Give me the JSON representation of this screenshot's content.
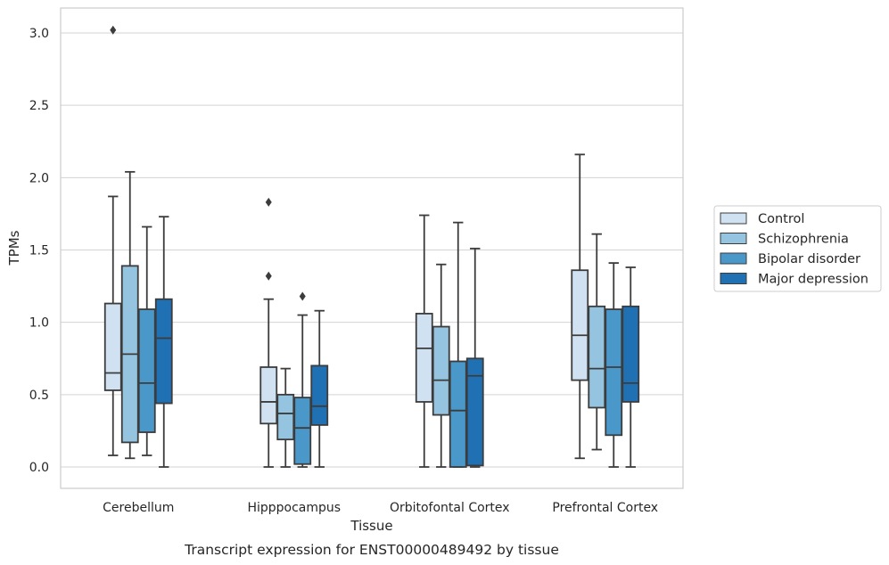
{
  "chart_data": {
    "type": "box",
    "title": "",
    "caption": "Transcript expression for ENST00000489492 by tissue",
    "xlabel": "Tissue",
    "ylabel": "TPMs",
    "ylim": [
      -0.15,
      3.18
    ],
    "yticks": [
      "0.0",
      "0.5",
      "1.0",
      "1.5",
      "2.0",
      "2.5",
      "3.0"
    ],
    "grid": true,
    "legend_position": "right",
    "categories": [
      "Cerebellum",
      "Hipppocampus",
      "Orbitofontal Cortex",
      "Prefrontal Cortex"
    ],
    "series": [
      {
        "name": "Control",
        "color": "#d0e1f2",
        "boxes": [
          {
            "whislo": 0.08,
            "q1": 0.53,
            "med": 0.65,
            "q3": 1.13,
            "whishi": 1.87,
            "fliers": [
              3.02
            ]
          },
          {
            "whislo": 0.0,
            "q1": 0.3,
            "med": 0.45,
            "q3": 0.69,
            "whishi": 1.16,
            "fliers": [
              1.32,
              1.83
            ]
          },
          {
            "whislo": 0.0,
            "q1": 0.45,
            "med": 0.82,
            "q3": 1.06,
            "whishi": 1.74,
            "fliers": []
          },
          {
            "whislo": 0.06,
            "q1": 0.6,
            "med": 0.91,
            "q3": 1.36,
            "whishi": 2.16,
            "fliers": []
          }
        ]
      },
      {
        "name": "Schizophrenia",
        "color": "#94c4df",
        "boxes": [
          {
            "whislo": 0.06,
            "q1": 0.17,
            "med": 0.78,
            "q3": 1.39,
            "whishi": 2.04,
            "fliers": []
          },
          {
            "whislo": 0.0,
            "q1": 0.19,
            "med": 0.37,
            "q3": 0.5,
            "whishi": 0.68,
            "fliers": []
          },
          {
            "whislo": 0.0,
            "q1": 0.36,
            "med": 0.6,
            "q3": 0.97,
            "whishi": 1.4,
            "fliers": []
          },
          {
            "whislo": 0.12,
            "q1": 0.41,
            "med": 0.68,
            "q3": 1.11,
            "whishi": 1.61,
            "fliers": []
          }
        ]
      },
      {
        "name": "Bipolar disorder",
        "color": "#4a98c9",
        "boxes": [
          {
            "whislo": 0.08,
            "q1": 0.24,
            "med": 0.58,
            "q3": 1.09,
            "whishi": 1.66,
            "fliers": []
          },
          {
            "whislo": 0.0,
            "q1": 0.02,
            "med": 0.27,
            "q3": 0.48,
            "whishi": 1.05,
            "fliers": [
              1.18
            ]
          },
          {
            "whislo": 0.0,
            "q1": 0.0,
            "med": 0.39,
            "q3": 0.73,
            "whishi": 1.69,
            "fliers": []
          },
          {
            "whislo": 0.0,
            "q1": 0.22,
            "med": 0.69,
            "q3": 1.09,
            "whishi": 1.41,
            "fliers": []
          }
        ]
      },
      {
        "name": "Major depression",
        "color": "#2070b4",
        "boxes": [
          {
            "whislo": 0.0,
            "q1": 0.44,
            "med": 0.89,
            "q3": 1.16,
            "whishi": 1.73,
            "fliers": []
          },
          {
            "whislo": 0.0,
            "q1": 0.29,
            "med": 0.42,
            "q3": 0.7,
            "whishi": 1.08,
            "fliers": []
          },
          {
            "whislo": 0.0,
            "q1": 0.01,
            "med": 0.63,
            "q3": 0.75,
            "whishi": 1.51,
            "fliers": []
          },
          {
            "whislo": 0.0,
            "q1": 0.45,
            "med": 0.58,
            "q3": 1.11,
            "whishi": 1.38,
            "fliers": []
          }
        ]
      }
    ]
  }
}
